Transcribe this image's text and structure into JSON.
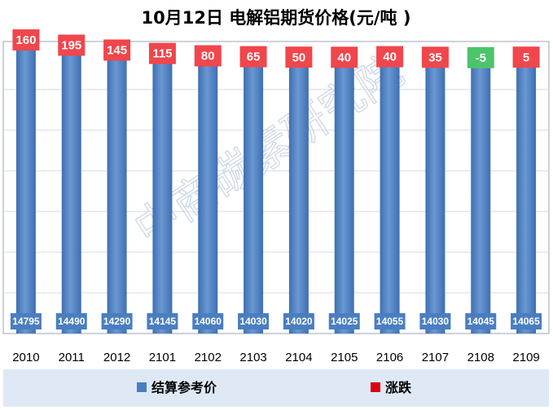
{
  "chart_data": {
    "type": "bar",
    "title": "10月12日 电解铝期货价格(元/吨 )",
    "categories": [
      "2010",
      "2011",
      "2012",
      "2101",
      "2102",
      "2103",
      "2104",
      "2105",
      "2106",
      "2107",
      "2108",
      "2109"
    ],
    "series": [
      {
        "name": "结算参考价",
        "values": [
          14795,
          14490,
          14290,
          14145,
          14060,
          14030,
          14020,
          14025,
          14055,
          14030,
          14045,
          14065
        ]
      },
      {
        "name": "涨跌",
        "values": [
          160,
          195,
          145,
          115,
          80,
          65,
          50,
          40,
          40,
          35,
          -5,
          5
        ]
      }
    ],
    "stacked": true,
    "grid": true,
    "legend_position": "bottom",
    "watermark": "中商碳素研究院",
    "colors": {
      "price": "#4a7ec1",
      "change_up": "#d9000f",
      "change_up_label": "#f0464c",
      "change_down_label": "#4cc46a",
      "legend_bg": "#dfe9f6"
    }
  }
}
